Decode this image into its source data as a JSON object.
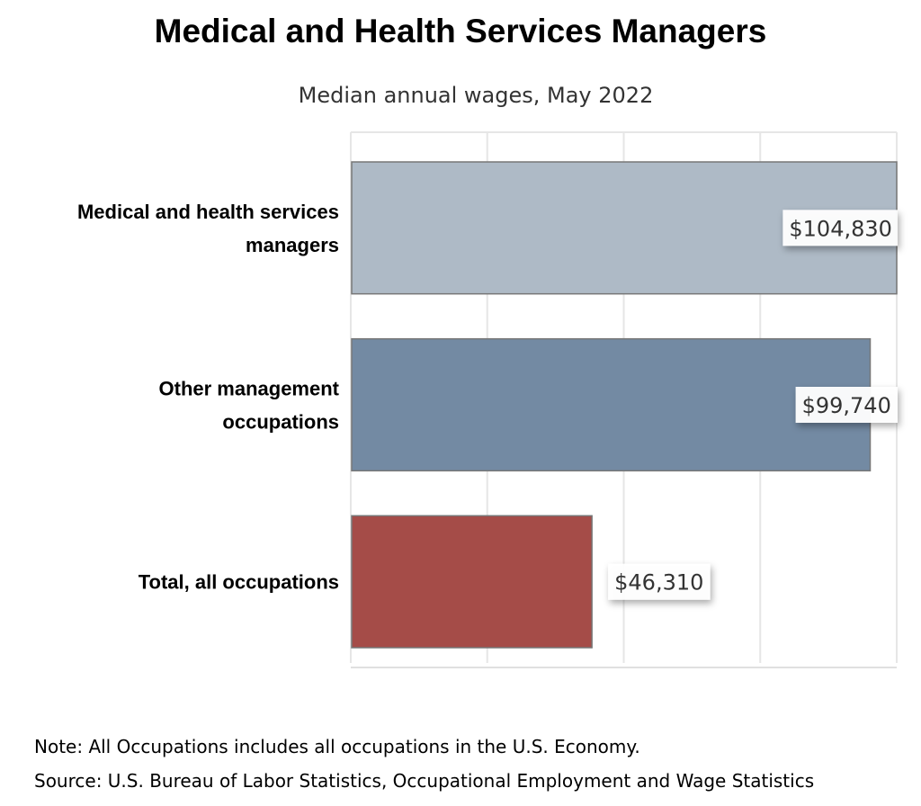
{
  "chart_data": {
    "type": "bar",
    "orientation": "horizontal",
    "title": "Medical and Health Services Managers",
    "subtitle": "Median annual wages, May 2022",
    "categories": [
      "Medical and health services managers",
      "Other management occupations",
      "Total, all occupations"
    ],
    "category_lines": [
      [
        "Medical and health services",
        "managers"
      ],
      [
        "Other management",
        "occupations"
      ],
      [
        "Total, all occupations"
      ]
    ],
    "values": [
      104830,
      99740,
      46310
    ],
    "data_labels": [
      "$104,830",
      "$99,740",
      "$46,310"
    ],
    "colors": [
      "#aebac6",
      "#738aa3",
      "#a54c48"
    ],
    "xlim": [
      0,
      104830
    ],
    "grid": true,
    "xlabel": "",
    "ylabel": ""
  },
  "notes": {
    "note": "Note: All Occupations includes all occupations in the U.S. Economy.",
    "source": "Source: U.S. Bureau of Labor Statistics, Occupational Employment and Wage Statistics"
  }
}
